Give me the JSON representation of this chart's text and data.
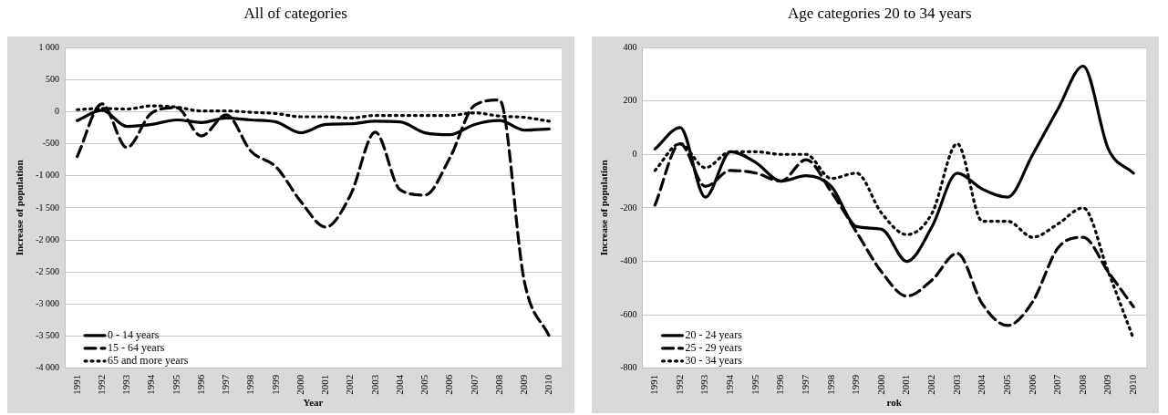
{
  "chart_data": [
    {
      "type": "line",
      "title": "All of categories",
      "xlabel": "Year",
      "ylabel": "Increase of population",
      "categories": [
        "1991",
        "1992",
        "1993",
        "1994",
        "1995",
        "1996",
        "1997",
        "1998",
        "1999",
        "2000",
        "2001",
        "2002",
        "2003",
        "2004",
        "2005",
        "2006",
        "2007",
        "2008",
        "2009",
        "2010"
      ],
      "series": [
        {
          "name": "0 - 14 years",
          "color": "#000000",
          "line_style": "solid",
          "values": [
            -140,
            20,
            -230,
            -200,
            -130,
            -170,
            -100,
            -130,
            -160,
            -330,
            -200,
            -190,
            -150,
            -160,
            -330,
            -360,
            -200,
            -140,
            -290,
            -270
          ]
        },
        {
          "name": "15 - 64 years",
          "color": "#000000",
          "line_style": "dashed",
          "values": [
            -700,
            120,
            -560,
            -20,
            60,
            -380,
            -50,
            -620,
            -860,
            -1400,
            -1800,
            -1300,
            -320,
            -1220,
            -1300,
            -720,
            100,
            180,
            -2650,
            -3500
          ]
        },
        {
          "name": "65 and more years",
          "color": "#000000",
          "line_style": "dotted",
          "values": [
            30,
            50,
            40,
            90,
            70,
            10,
            10,
            -10,
            -30,
            -80,
            -80,
            -100,
            -60,
            -60,
            -60,
            -60,
            -20,
            -70,
            -90,
            -150
          ]
        }
      ],
      "ylim": [
        -4000,
        1000
      ],
      "yticks": [
        {
          "value": -4000,
          "label": "-4 000"
        },
        {
          "value": -3500,
          "label": "-3 500"
        },
        {
          "value": -3000,
          "label": "-3 000"
        },
        {
          "value": -2500,
          "label": "-2 500"
        },
        {
          "value": -2000,
          "label": "-2 000"
        },
        {
          "value": -1500,
          "label": "-1 500"
        },
        {
          "value": -1000,
          "label": "-1 000"
        },
        -500,
        0,
        500,
        {
          "value": 1000,
          "label": "1 000"
        }
      ],
      "grid": "y",
      "legend": "bottom left",
      "marker": "none"
    },
    {
      "type": "line",
      "title": "Age categories 20 to 34 years",
      "xlabel": "rok",
      "ylabel": "Increase of population",
      "categories": [
        "1991",
        "1992",
        "1993",
        "1994",
        "1995",
        "1996",
        "1997",
        "1998",
        "1999",
        "2000",
        "2001",
        "2002",
        "2003",
        "2004",
        "2005",
        "2006",
        "2007",
        "2008",
        "2009",
        "2010"
      ],
      "series": [
        {
          "name": "20 - 24 years",
          "color": "#000000",
          "line_style": "solid",
          "values": [
            20,
            100,
            -160,
            10,
            -30,
            -100,
            -80,
            -120,
            -270,
            -280,
            -400,
            -270,
            -70,
            -130,
            -160,
            0,
            170,
            330,
            20,
            -70
          ]
        },
        {
          "name": "25 - 29 years",
          "color": "#000000",
          "line_style": "dashed",
          "values": [
            -190,
            40,
            -120,
            -60,
            -70,
            -100,
            -20,
            -140,
            -290,
            -440,
            -530,
            -470,
            -370,
            -560,
            -640,
            -550,
            -350,
            -310,
            -440,
            -570
          ]
        },
        {
          "name": "30 - 34 years",
          "color": "#000000",
          "line_style": "dotted",
          "values": [
            -60,
            40,
            -50,
            10,
            10,
            0,
            0,
            -90,
            -70,
            -220,
            -300,
            -220,
            40,
            -250,
            -250,
            -310,
            -260,
            -200,
            -440,
            -690
          ]
        }
      ],
      "ylim": [
        -800,
        400
      ],
      "yticks": [
        -800,
        -600,
        -400,
        -200,
        0,
        200,
        400
      ],
      "grid": "y",
      "legend": "bottom left",
      "marker": "none"
    }
  ]
}
